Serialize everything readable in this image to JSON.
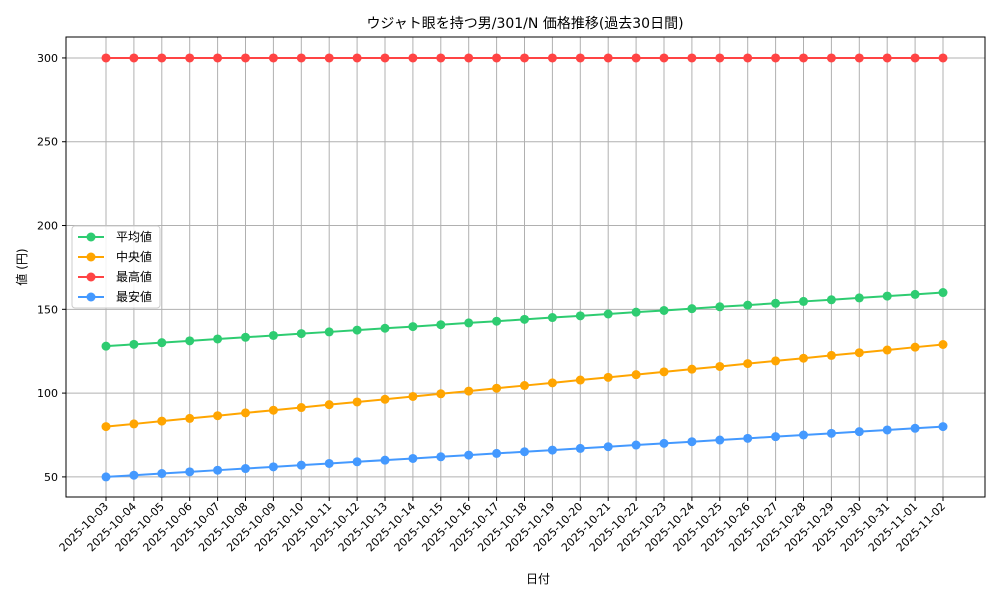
{
  "chart_data": {
    "type": "line",
    "title": "ウジャト眼を持つ男/301/N 価格推移(過去30日間)",
    "xlabel": "日付",
    "ylabel": "値 (円)",
    "ylim": [
      38,
      312.5
    ],
    "yticks": [
      50,
      100,
      150,
      200,
      250,
      300
    ],
    "grid": true,
    "legend_position": "center-left",
    "x": [
      "2025-10-03",
      "2025-10-04",
      "2025-10-05",
      "2025-10-06",
      "2025-10-07",
      "2025-10-08",
      "2025-10-09",
      "2025-10-10",
      "2025-10-11",
      "2025-10-12",
      "2025-10-13",
      "2025-10-14",
      "2025-10-15",
      "2025-10-16",
      "2025-10-17",
      "2025-10-18",
      "2025-10-19",
      "2025-10-20",
      "2025-10-21",
      "2025-10-22",
      "2025-10-23",
      "2025-10-24",
      "2025-10-25",
      "2025-10-26",
      "2025-10-27",
      "2025-10-28",
      "2025-10-29",
      "2025-10-30",
      "2025-10-31",
      "2025-11-01",
      "2025-11-02"
    ],
    "series": [
      {
        "name": "平均値",
        "color": "#2ecc71",
        "values": [
          128.0,
          129.1,
          130.1,
          131.2,
          132.3,
          133.3,
          134.4,
          135.5,
          136.5,
          137.6,
          138.7,
          139.7,
          140.8,
          141.9,
          142.9,
          144.0,
          145.1,
          146.1,
          147.2,
          148.3,
          149.3,
          150.4,
          151.5,
          152.5,
          153.6,
          154.7,
          155.7,
          156.8,
          157.9,
          158.9,
          160.0
        ]
      },
      {
        "name": "中央値",
        "color": "#ffa500",
        "values": [
          80.0,
          81.6,
          83.3,
          84.9,
          86.5,
          88.2,
          89.8,
          91.4,
          93.1,
          94.7,
          96.3,
          98.0,
          99.6,
          101.2,
          102.9,
          104.5,
          106.1,
          107.8,
          109.4,
          111.0,
          112.7,
          114.3,
          115.9,
          117.6,
          119.2,
          120.8,
          122.5,
          124.1,
          125.7,
          127.4,
          129.0
        ]
      },
      {
        "name": "最高値",
        "color": "#ff4444",
        "values": [
          300,
          300,
          300,
          300,
          300,
          300,
          300,
          300,
          300,
          300,
          300,
          300,
          300,
          300,
          300,
          300,
          300,
          300,
          300,
          300,
          300,
          300,
          300,
          300,
          300,
          300,
          300,
          300,
          300,
          300,
          300
        ]
      },
      {
        "name": "最安値",
        "color": "#4499ff",
        "values": [
          50,
          51,
          52,
          53,
          54,
          55,
          56,
          57,
          58,
          59,
          60,
          61,
          62,
          63,
          64,
          65,
          66,
          67,
          68,
          69,
          70,
          71,
          72,
          73,
          74,
          75,
          76,
          77,
          78,
          79,
          80
        ]
      }
    ]
  }
}
